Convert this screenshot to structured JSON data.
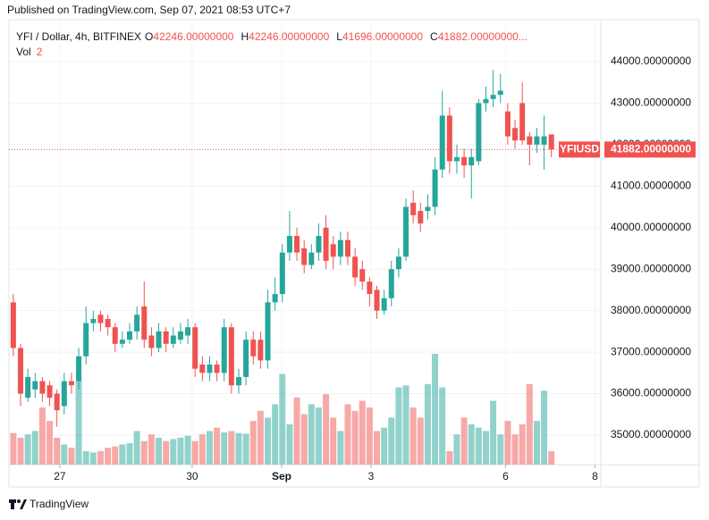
{
  "header": {
    "published": "Published on TradingView.com, Sep 07, 2021 08:53 UTC+7",
    "footer": "TradingView"
  },
  "chart_data": {
    "type": "candlestick",
    "symbol": "YFI / Dollar, 4h, BITFINEX",
    "legend": [
      {
        "key": "O",
        "value": "42246.00000000"
      },
      {
        "key": "H",
        "value": "42246.00000000"
      },
      {
        "key": "L",
        "value": "41696.00000000"
      },
      {
        "key": "C",
        "value": "41882.00000000..."
      }
    ],
    "volume_label": "Vol",
    "up_color": "#26a69a",
    "down_color": "#ef5350",
    "open": [
      38200,
      37100,
      35900,
      36100,
      36300,
      36200,
      36000,
      35700,
      36300,
      36300,
      36900,
      37700,
      37900,
      37800,
      37600,
      37200,
      37300,
      37500,
      38100,
      37400,
      37100,
      37500,
      37200,
      37300,
      37400,
      37600,
      36700,
      36500,
      36700,
      36500,
      37600,
      36200,
      36400,
      37300,
      37300,
      36800,
      38200,
      38400,
      39400,
      39800,
      39500,
      39100,
      39400,
      40000,
      39600,
      39300,
      39700,
      39300,
      39000,
      38700,
      38500,
      38000,
      38300,
      39000,
      39300,
      40600,
      40400,
      40400,
      40500,
      41400,
      42700,
      41600,
      41700,
      41500,
      41600,
      43000,
      43100,
      43200,
      42800,
      42400,
      43000,
      42200,
      42000,
      42000,
      42246
    ],
    "high": [
      38400,
      37200,
      36600,
      36500,
      36400,
      36300,
      36100,
      36500,
      36500,
      37100,
      38100,
      38000,
      38000,
      37900,
      37700,
      37500,
      37700,
      38100,
      38700,
      37600,
      37700,
      37600,
      37600,
      37700,
      37800,
      37700,
      36900,
      36900,
      36800,
      37800,
      37700,
      36600,
      37500,
      37500,
      37500,
      38500,
      38800,
      39600,
      40400,
      40000,
      39700,
      39600,
      40100,
      40300,
      39800,
      39900,
      39900,
      39500,
      39200,
      38800,
      38600,
      38500,
      39200,
      39500,
      40700,
      40900,
      40600,
      40800,
      41700,
      43300,
      42900,
      42000,
      41900,
      41900,
      43100,
      43400,
      43800,
      43700,
      43000,
      42600,
      43500,
      42300,
      42400,
      42700,
      42246
    ],
    "low": [
      36900,
      35700,
      35800,
      35900,
      35800,
      35700,
      35200,
      35500,
      36000,
      36100,
      36700,
      37500,
      37500,
      37400,
      37000,
      37100,
      37200,
      37300,
      37100,
      36900,
      37000,
      37000,
      37100,
      37200,
      37200,
      36400,
      36300,
      36300,
      36300,
      36300,
      36000,
      36000,
      36200,
      36700,
      36600,
      36600,
      38000,
      38200,
      39200,
      39200,
      38900,
      39000,
      39200,
      39000,
      39000,
      39100,
      39100,
      38600,
      38500,
      38100,
      37800,
      37900,
      38100,
      38800,
      39200,
      40100,
      39900,
      40200,
      40300,
      41200,
      41300,
      41300,
      41200,
      40700,
      41500,
      42800,
      42900,
      43000,
      42000,
      41900,
      42000,
      41500,
      41800,
      41400,
      41696
    ],
    "close": [
      37100,
      36000,
      36400,
      36300,
      36000,
      35900,
      35600,
      36300,
      36200,
      36900,
      37700,
      37800,
      37700,
      37600,
      37200,
      37300,
      37500,
      37900,
      37300,
      37100,
      37500,
      37200,
      37400,
      37500,
      37600,
      36600,
      36500,
      36700,
      36500,
      37600,
      36200,
      36400,
      37300,
      36900,
      36800,
      38200,
      38400,
      39400,
      39800,
      39400,
      39100,
      39400,
      39800,
      39200,
      39300,
      39700,
      39300,
      38800,
      38700,
      38400,
      38000,
      38300,
      39000,
      39300,
      40500,
      40300,
      40100,
      40500,
      41400,
      42700,
      41600,
      41700,
      41500,
      41700,
      43000,
      43100,
      43200,
      43300,
      42200,
      42100,
      42100,
      42000,
      42200,
      42200,
      41882
    ],
    "volume": [
      4.7,
      4.0,
      4.5,
      5.0,
      8.5,
      6.5,
      4.0,
      3.0,
      2.5,
      12.5,
      2.0,
      1.8,
      2.0,
      2.5,
      2.7,
      3.0,
      3.2,
      5.0,
      3.5,
      4.5,
      4.0,
      3.5,
      3.8,
      4.0,
      4.3,
      3.5,
      4.5,
      5.0,
      5.5,
      4.8,
      5.0,
      4.7,
      4.6,
      6.5,
      8.0,
      7.0,
      9.0,
      13.5,
      6.0,
      10.0,
      7.5,
      9.0,
      8.5,
      10.5,
      7.0,
      5.0,
      9.0,
      8.0,
      9.5,
      8.5,
      5.0,
      5.5,
      7.0,
      11.5,
      11.8,
      8.5,
      7.0,
      12.0,
      16.5,
      11.5,
      2.0,
      4.5,
      7.0,
      6.0,
      5.5,
      5.0,
      9.5,
      4.5,
      6.5,
      4.5,
      6.0,
      12.0,
      6.5,
      11.0,
      2.0
    ],
    "vlim": [
      0,
      16.5
    ],
    "xlim": [
      -0.6,
      80.8
    ],
    "xticks": [
      {
        "value": 6.4,
        "label": "27"
      },
      {
        "value": 24.6,
        "label": "30"
      },
      {
        "value": 36.9,
        "label": "Sep"
      },
      {
        "value": 49.2,
        "label": "3"
      },
      {
        "value": 67.7,
        "label": "6"
      },
      {
        "value": 80,
        "label": "8"
      }
    ],
    "ylim": [
      34289,
      45012
    ],
    "yticks": [
      {
        "value": 35000,
        "label": "35000.00000000"
      },
      {
        "value": 36000,
        "label": "36000.00000000"
      },
      {
        "value": 37000,
        "label": "37000.00000000"
      },
      {
        "value": 38000,
        "label": "38000.00000000"
      },
      {
        "value": 39000,
        "label": "39000.00000000"
      },
      {
        "value": 40000,
        "label": "40000.00000000"
      },
      {
        "value": 41000,
        "label": "41000.00000000"
      },
      {
        "value": 42000,
        "label": "42000.00000000"
      },
      {
        "value": 43000,
        "label": "43000.00000000"
      },
      {
        "value": 44000,
        "label": "44000.00000000"
      }
    ],
    "last_price": {
      "ticker": "YFIUSD",
      "value": 41882,
      "label": "41882.00000000"
    },
    "grid": true
  }
}
